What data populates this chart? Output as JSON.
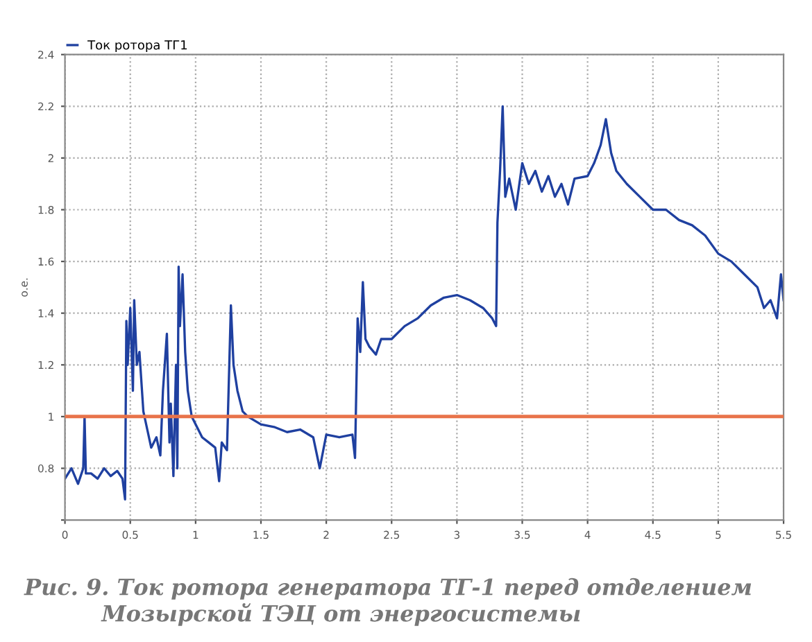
{
  "chart_data": {
    "type": "line",
    "ylabel": "о.е.",
    "xlim": [
      0,
      5.5
    ],
    "xticks": [
      0,
      0.5,
      1,
      1.5,
      2,
      2.5,
      3,
      3.5,
      4,
      4.5,
      5,
      5.5
    ],
    "ylim": [
      0.6,
      2.4
    ],
    "yticks": [
      {
        "value": 0.6,
        "label": null
      },
      0.8,
      1,
      1.2,
      1.4,
      1.6,
      1.8,
      2,
      2.2,
      2.4
    ],
    "grid": true,
    "legend": "top left",
    "marker": "none",
    "line_style": "solid",
    "series": [
      {
        "name": "Ток ротора ТГ1",
        "color": "#1f40a0",
        "x": [
          0,
          0.05,
          0.1,
          0.14,
          0.15,
          0.16,
          0.2,
          0.25,
          0.3,
          0.35,
          0.4,
          0.44,
          0.46,
          0.47,
          0.48,
          0.5,
          0.52,
          0.53,
          0.55,
          0.57,
          0.6,
          0.63,
          0.66,
          0.7,
          0.73,
          0.75,
          0.78,
          0.8,
          0.81,
          0.83,
          0.85,
          0.86,
          0.87,
          0.88,
          0.9,
          0.92,
          0.94,
          0.97,
          1.0,
          1.05,
          1.1,
          1.15,
          1.18,
          1.2,
          1.24,
          1.27,
          1.29,
          1.32,
          1.36,
          1.4,
          1.5,
          1.6,
          1.7,
          1.8,
          1.9,
          1.95,
          2.0,
          2.1,
          2.2,
          2.22,
          2.24,
          2.26,
          2.28,
          2.3,
          2.33,
          2.38,
          2.42,
          2.5,
          2.6,
          2.7,
          2.8,
          2.9,
          3.0,
          3.1,
          3.2,
          3.27,
          3.3,
          3.31,
          3.33,
          3.35,
          3.37,
          3.4,
          3.45,
          3.5,
          3.55,
          3.6,
          3.65,
          3.7,
          3.75,
          3.8,
          3.85,
          3.9,
          4.0,
          4.05,
          4.1,
          4.14,
          4.18,
          4.22,
          4.3,
          4.4,
          4.5,
          4.6,
          4.7,
          4.8,
          4.9,
          5.0,
          5.1,
          5.2,
          5.3,
          5.35,
          5.4,
          5.45,
          5.48,
          5.5
        ],
        "values": [
          0.76,
          0.8,
          0.74,
          0.8,
          1.0,
          0.78,
          0.78,
          0.76,
          0.8,
          0.77,
          0.79,
          0.76,
          0.68,
          1.37,
          1.2,
          1.42,
          1.1,
          1.45,
          1.2,
          1.25,
          1.02,
          0.95,
          0.88,
          0.92,
          0.85,
          1.1,
          1.32,
          0.9,
          1.05,
          0.77,
          1.2,
          0.8,
          1.58,
          1.35,
          1.55,
          1.25,
          1.1,
          1.0,
          0.97,
          0.92,
          0.9,
          0.88,
          0.75,
          0.9,
          0.87,
          1.43,
          1.2,
          1.1,
          1.02,
          1.0,
          0.97,
          0.96,
          0.94,
          0.95,
          0.92,
          0.8,
          0.93,
          0.92,
          0.93,
          0.84,
          1.38,
          1.25,
          1.52,
          1.3,
          1.27,
          1.24,
          1.3,
          1.3,
          1.35,
          1.38,
          1.43,
          1.46,
          1.47,
          1.45,
          1.42,
          1.38,
          1.35,
          1.75,
          1.95,
          2.2,
          1.85,
          1.92,
          1.8,
          1.98,
          1.9,
          1.95,
          1.87,
          1.93,
          1.85,
          1.9,
          1.82,
          1.92,
          1.93,
          1.98,
          2.05,
          2.15,
          2.02,
          1.95,
          1.9,
          1.85,
          1.8,
          1.8,
          1.76,
          1.74,
          1.7,
          1.63,
          1.6,
          1.55,
          1.5,
          1.42,
          1.45,
          1.38,
          1.55,
          1.45
        ]
      }
    ],
    "ref_lines": [
      {
        "axis": "y",
        "value": 1,
        "color": "#e8734a"
      }
    ],
    "annotations": [
      "Рис. 9. Ток ротора генератора ТГ-1 перед отделением\n          Мозырской ТЭЦ от энергосистемы"
    ]
  }
}
